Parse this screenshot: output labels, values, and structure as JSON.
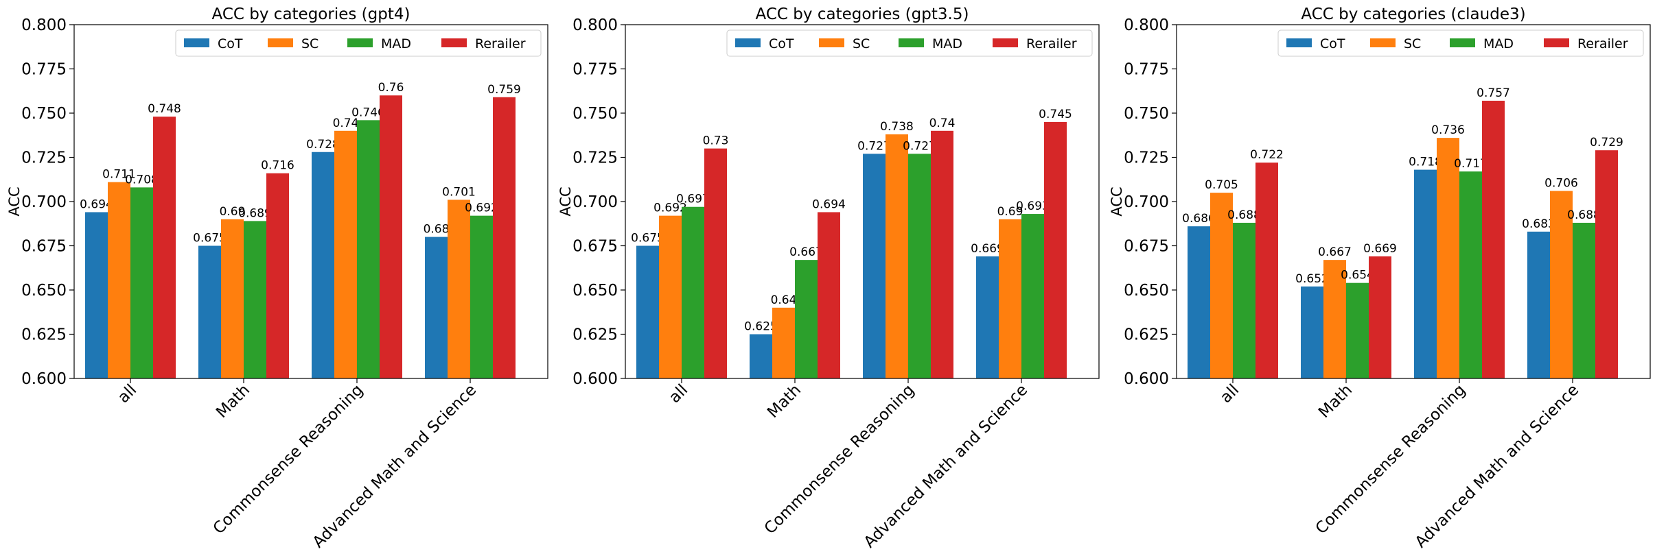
{
  "chart_data": [
    {
      "type": "bar",
      "title": "ACC by categories (gpt4)",
      "ylabel": "ACC",
      "xlabel": "",
      "ylim": [
        0.6,
        0.8
      ],
      "yticks": [
        "0.600",
        "0.625",
        "0.650",
        "0.675",
        "0.700",
        "0.725",
        "0.750",
        "0.775",
        "0.800"
      ],
      "categories": [
        "all",
        "Math",
        "Commonsense Reasoning",
        "Advanced Math and Science"
      ],
      "legend_position": "top-right",
      "grid": false,
      "series": [
        {
          "name": "CoT",
          "color": "#1f77b4",
          "values": [
            0.694,
            0.675,
            0.728,
            0.68
          ],
          "labels": [
            "0.694",
            "0.675",
            "0.728",
            "0.68"
          ]
        },
        {
          "name": "SC",
          "color": "#ff7f0e",
          "values": [
            0.711,
            0.69,
            0.74,
            0.701
          ],
          "labels": [
            "0.711",
            "0.69",
            "0.74",
            "0.701"
          ]
        },
        {
          "name": "MAD",
          "color": "#2ca02c",
          "values": [
            0.708,
            0.689,
            0.746,
            0.692
          ],
          "labels": [
            "0.708",
            "0.689",
            "0.746",
            "0.692"
          ]
        },
        {
          "name": "Rerailer",
          "color": "#d62728",
          "values": [
            0.748,
            0.716,
            0.76,
            0.759
          ],
          "labels": [
            "0.748",
            "0.716",
            "0.76",
            "0.759"
          ]
        }
      ]
    },
    {
      "type": "bar",
      "title": "ACC by categories (gpt3.5)",
      "ylabel": "ACC",
      "xlabel": "",
      "ylim": [
        0.6,
        0.8
      ],
      "yticks": [
        "0.600",
        "0.625",
        "0.650",
        "0.675",
        "0.700",
        "0.725",
        "0.750",
        "0.775",
        "0.800"
      ],
      "categories": [
        "all",
        "Math",
        "Commonsense Reasoning",
        "Advanced Math and Science"
      ],
      "legend_position": "top-right",
      "grid": false,
      "series": [
        {
          "name": "CoT",
          "color": "#1f77b4",
          "values": [
            0.675,
            0.625,
            0.727,
            0.669
          ],
          "labels": [
            "0.675",
            "0.625",
            "0.727",
            "0.669"
          ]
        },
        {
          "name": "SC",
          "color": "#ff7f0e",
          "values": [
            0.692,
            0.64,
            0.738,
            0.69
          ],
          "labels": [
            "0.692",
            "0.64",
            "0.738",
            "0.69"
          ]
        },
        {
          "name": "MAD",
          "color": "#2ca02c",
          "values": [
            0.697,
            0.667,
            0.727,
            0.693
          ],
          "labels": [
            "0.697",
            "0.667",
            "0.727",
            "0.693"
          ]
        },
        {
          "name": "Rerailer",
          "color": "#d62728",
          "values": [
            0.73,
            0.694,
            0.74,
            0.745
          ],
          "labels": [
            "0.73",
            "0.694",
            "0.74",
            "0.745"
          ]
        }
      ]
    },
    {
      "type": "bar",
      "title": "ACC by categories (claude3)",
      "ylabel": "ACC",
      "xlabel": "",
      "ylim": [
        0.6,
        0.8
      ],
      "yticks": [
        "0.600",
        "0.625",
        "0.650",
        "0.675",
        "0.700",
        "0.725",
        "0.750",
        "0.775",
        "0.800"
      ],
      "categories": [
        "all",
        "Math",
        "Commonsense Reasoning",
        "Advanced Math and Science"
      ],
      "legend_position": "top-right",
      "grid": false,
      "series": [
        {
          "name": "CoT",
          "color": "#1f77b4",
          "values": [
            0.686,
            0.652,
            0.718,
            0.683
          ],
          "labels": [
            "0.686",
            "0.652",
            "0.718",
            "0.683"
          ]
        },
        {
          "name": "SC",
          "color": "#ff7f0e",
          "values": [
            0.705,
            0.667,
            0.736,
            0.706
          ],
          "labels": [
            "0.705",
            "0.667",
            "0.736",
            "0.706"
          ]
        },
        {
          "name": "MAD",
          "color": "#2ca02c",
          "values": [
            0.688,
            0.654,
            0.717,
            0.688
          ],
          "labels": [
            "0.688",
            "0.654",
            "0.717",
            "0.688"
          ]
        },
        {
          "name": "Rerailer",
          "color": "#d62728",
          "values": [
            0.722,
            0.669,
            0.757,
            0.729
          ],
          "labels": [
            "0.722",
            "0.669",
            "0.757",
            "0.729"
          ]
        }
      ]
    }
  ]
}
